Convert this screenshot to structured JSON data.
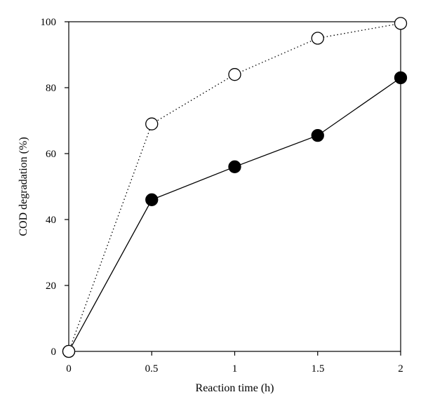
{
  "chart_data": {
    "type": "line",
    "xlabel": "Reaction time (h)",
    "ylabel": "COD degradation (%)",
    "xlim": [
      0,
      2
    ],
    "ylim": [
      0,
      100
    ],
    "x_ticks": [
      "0",
      "0.5",
      "1",
      "1.5",
      "2"
    ],
    "y_ticks": [
      "0",
      "20",
      "40",
      "60",
      "80",
      "100"
    ],
    "grid": false,
    "legend": "none",
    "series": [
      {
        "marker": "open-circle",
        "line_style": "dotted",
        "color": "#000000",
        "x": [
          0,
          0.5,
          1,
          1.5,
          2
        ],
        "y": [
          0,
          69,
          84,
          95,
          99.5
        ]
      },
      {
        "marker": "filled-circle",
        "line_style": "solid",
        "color": "#000000",
        "x": [
          0,
          0.5,
          1,
          1.5,
          2
        ],
        "y": [
          0,
          46,
          56,
          65.5,
          83
        ]
      }
    ]
  }
}
